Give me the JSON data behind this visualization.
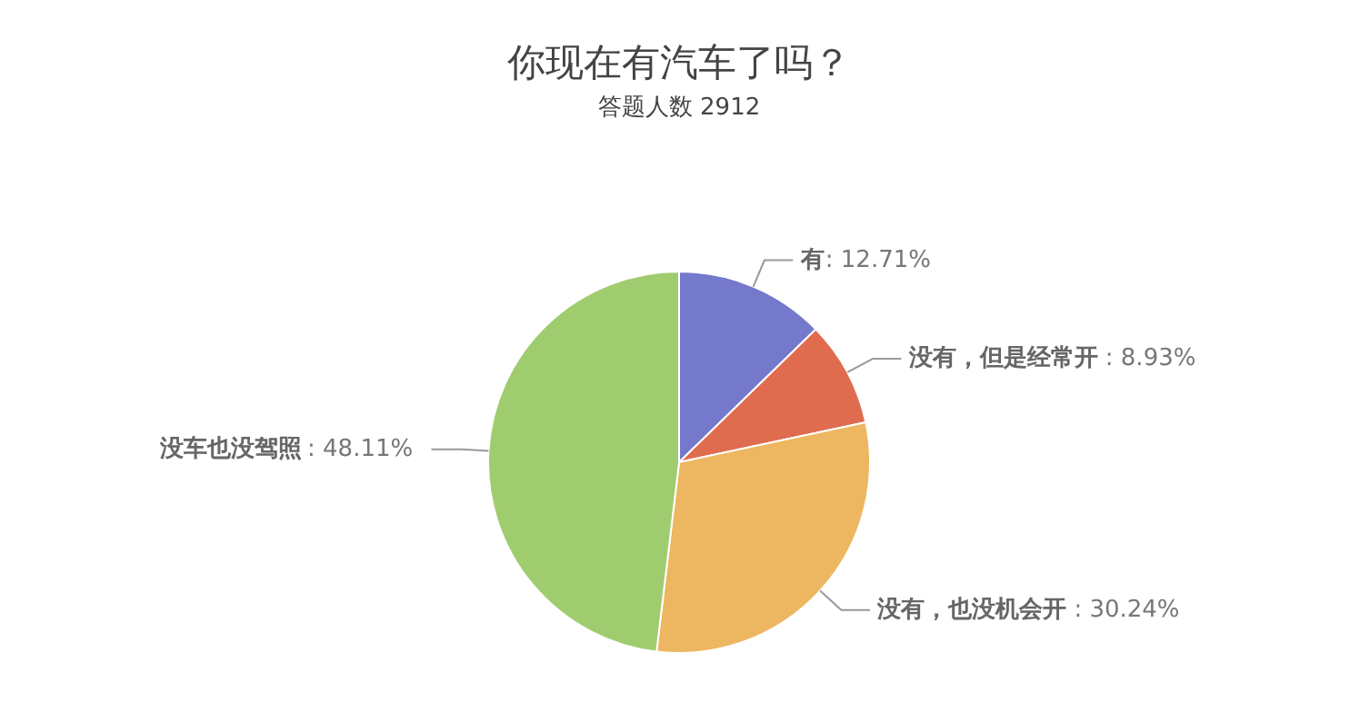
{
  "chart_data": {
    "type": "pie",
    "title": "你现在有汽车了吗？",
    "subtitle": "答题人数 2912",
    "categories": [
      "有",
      "没有，但是经常开",
      "没有，也没机会开",
      "没车也没驾照"
    ],
    "values": [
      12.71,
      8.93,
      30.24,
      48.11
    ],
    "colors": [
      "#7479cc",
      "#e06c50",
      "#edb660",
      "#a0cc70"
    ],
    "value_labels": [
      ": 12.71%",
      ": 8.93%",
      ": 30.24%",
      ": 48.11%"
    ]
  }
}
